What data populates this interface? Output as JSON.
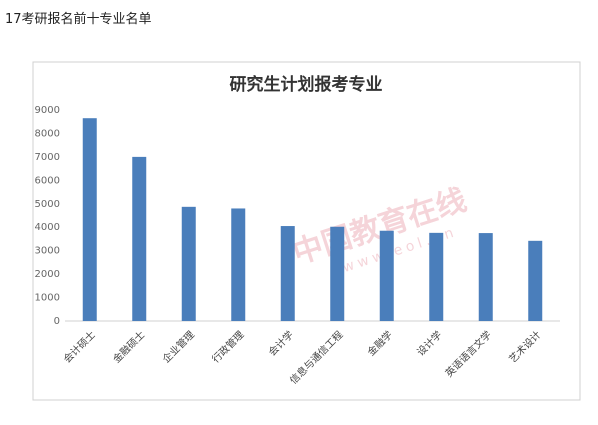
{
  "header": {
    "title": "17考研报名前十专业名单"
  },
  "chart_data": {
    "type": "bar",
    "title": "研究生计划报考专业",
    "categories": [
      "会计硕士",
      "金融硕士",
      "企业管理",
      "行政管理",
      "会计学",
      "信息与通信工程",
      "金融学",
      "设计学",
      "英语语言文学",
      "艺术设计"
    ],
    "values": [
      8650,
      7000,
      4870,
      4800,
      4050,
      4020,
      3850,
      3760,
      3750,
      3420
    ],
    "color": "#4a7ebb",
    "ylim": [
      0,
      9000
    ],
    "yticks": [
      0,
      1000,
      2000,
      3000,
      4000,
      5000,
      6000,
      7000,
      8000,
      9000
    ],
    "grid": false
  },
  "watermark": {
    "name": "中国教育在线",
    "url": "www.eol.cn"
  }
}
